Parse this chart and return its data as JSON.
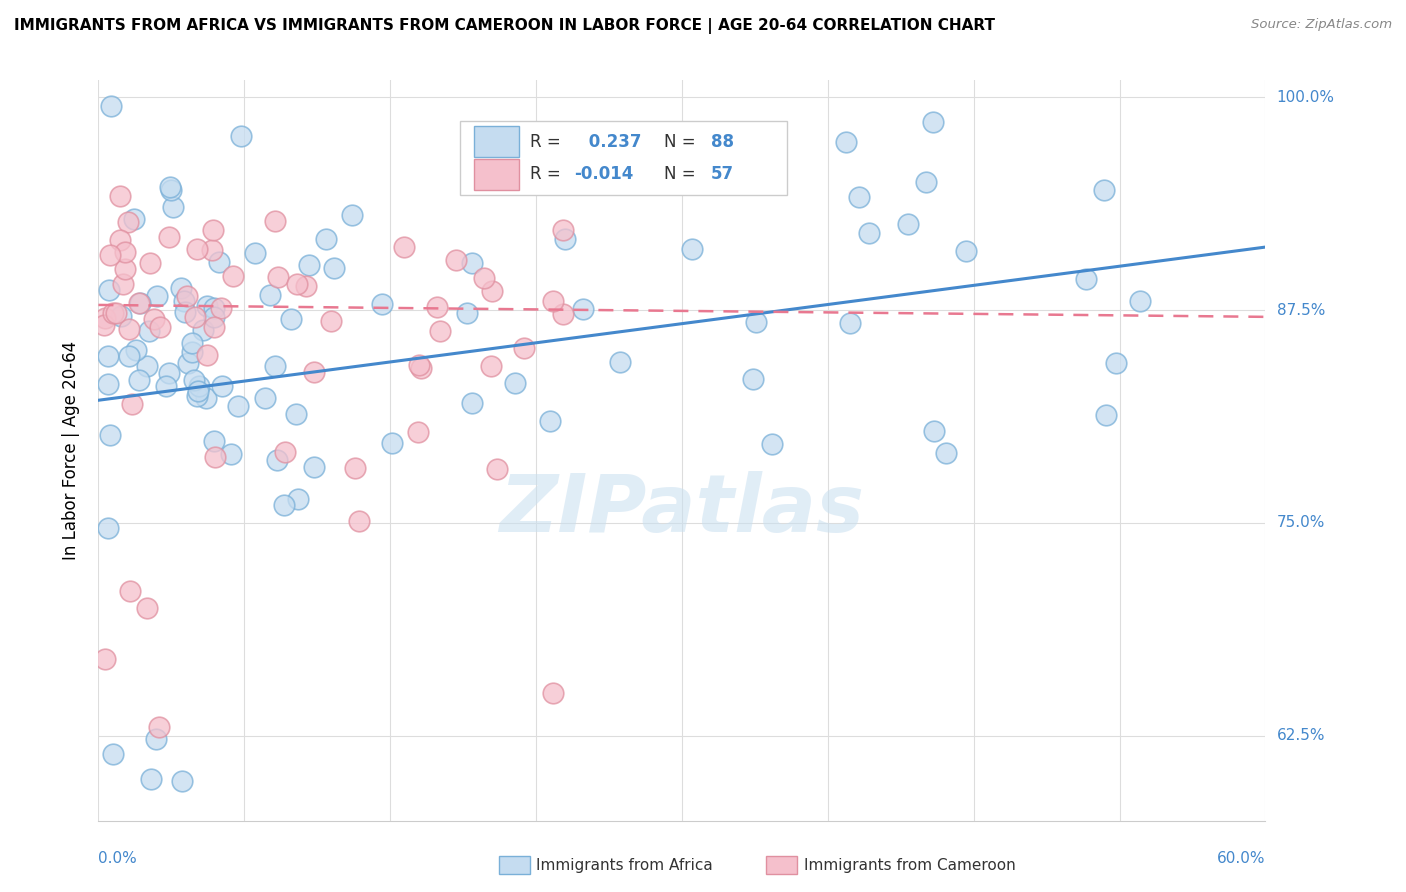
{
  "title": "IMMIGRANTS FROM AFRICA VS IMMIGRANTS FROM CAMEROON IN LABOR FORCE | AGE 20-64 CORRELATION CHART",
  "source": "Source: ZipAtlas.com",
  "ylabel_label": "In Labor Force | Age 20-64",
  "legend_africa": "Immigrants from Africa",
  "legend_cameroon": "Immigrants from Cameroon",
  "R_africa": 0.237,
  "N_africa": 88,
  "R_cameroon": -0.014,
  "N_cameroon": 57,
  "xmin": 0.0,
  "xmax": 0.6,
  "ymin": 0.575,
  "ymax": 1.01,
  "yticks": [
    0.625,
    0.75,
    0.875,
    1.0
  ],
  "ytick_labels": [
    "62.5%",
    "75.0%",
    "87.5%",
    "100.0%"
  ],
  "color_africa_fill": "#c5dcf0",
  "color_africa_edge": "#7ab0d8",
  "color_cameroon_fill": "#f5c0cc",
  "color_cameroon_edge": "#e090a0",
  "color_africa_line": "#4488cc",
  "color_cameroon_line": "#e87890",
  "africa_line_x": [
    0.0,
    0.6
  ],
  "africa_line_y": [
    0.822,
    0.912
  ],
  "cameroon_line_x": [
    0.0,
    0.6
  ],
  "cameroon_line_y": [
    0.878,
    0.871
  ]
}
